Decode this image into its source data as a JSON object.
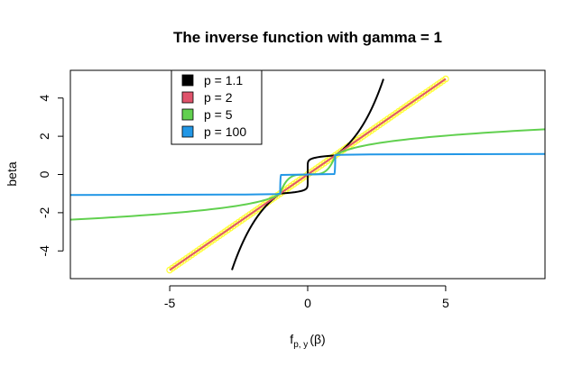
{
  "chart_data": {
    "type": "line",
    "title": "The inverse function with gamma = 1",
    "xlabel": {
      "main": "f",
      "subscript": "p, y",
      "arg": "(β)"
    },
    "ylabel": "beta",
    "xlim": [
      -8.6,
      8.6
    ],
    "ylim": [
      -5.45,
      5.45
    ],
    "x_ticks": [
      -5,
      0,
      5
    ],
    "y_ticks": [
      -4,
      -2,
      0,
      2,
      4
    ],
    "x_tick_labels": [
      "-5",
      "0",
      "5"
    ],
    "y_tick_labels": [
      "-4",
      "-2",
      "0",
      "2",
      "4"
    ],
    "grid": false,
    "legend_position": "top-left",
    "legend": [
      {
        "label": "p = 1.1",
        "color": "#000000"
      },
      {
        "label": "p = 2",
        "color": "#DF536B"
      },
      {
        "label": "p = 5",
        "color": "#61D04F"
      },
      {
        "label": "p = 100",
        "color": "#2297E6"
      }
    ],
    "gamma": 1,
    "p_values": [
      1.1,
      2,
      5,
      100
    ],
    "beta_range": [
      -5,
      5
    ],
    "series_colors": [
      "#000000",
      "#DF536B",
      "#61D04F",
      "#2297E6"
    ],
    "identity_points": {
      "color": "#FFFF33",
      "x_range": [
        -5,
        5
      ],
      "step": 0.1
    }
  }
}
